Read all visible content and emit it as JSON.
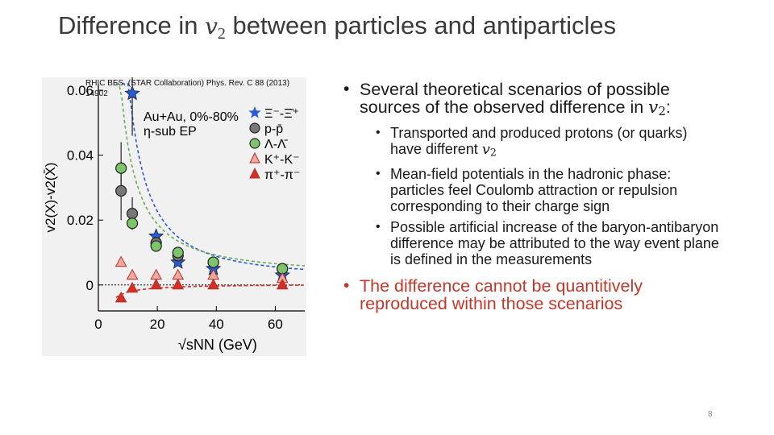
{
  "slide": {
    "title_prefix": "Difference in ",
    "title_var": "v",
    "title_sub": "2",
    "title_suffix": " between particles and antiparticles",
    "citation": "RHIC BES. (STAR Collaboration) Phys. Rev. C 88 (2013) 14902",
    "page_number": "8"
  },
  "bullets": {
    "main1_text": "Several theoretical scenarios of possible sources of the observed difference in ",
    "main1_var": "v",
    "main1_sub": "2",
    "main1_tail": ":",
    "sub1_text": "Transported and produced protons (or quarks) have different ",
    "sub1_var": "v",
    "sub1_sub": "2",
    "sub2_text": "Mean-field potentials in the hadronic phase: particles feel Coulomb attraction or repulsion corresponding to their charge sign",
    "sub3_text": "Possible artificial increase of the baryon-antibaryon difference may be attributed to the way event plane is defined in the measurements",
    "main2_text": "The difference cannot be quantitively reproduced within those scenarios"
  },
  "colors": {
    "accent_red": "#c0392b",
    "title_gray": "#3a3a3a"
  },
  "chart_data": {
    "type": "scatter",
    "annotation_line1": "Au+Au,  0%-80%",
    "annotation_line2": "η-sub EP",
    "xlabel": "√sNN  (GeV)",
    "ylabel": "v2(X)-v2(X̄)",
    "xlim": [
      0,
      70
    ],
    "ylim": [
      -0.008,
      0.062
    ],
    "xticks": [
      "0",
      "20",
      "40",
      "60"
    ],
    "yticks": [
      "0",
      "0.02",
      "0.04",
      "0.06"
    ],
    "legend_position": "top-right",
    "series": [
      {
        "name": "Ξ⁻-Ξ̄⁺",
        "marker": "star",
        "color": "#2a5bd7",
        "x": [
          11.5,
          19.6,
          27,
          39,
          62.4
        ],
        "y": [
          0.059,
          0.015,
          0.007,
          0.005,
          0.003
        ]
      },
      {
        "name": "p-p̄",
        "marker": "circle",
        "color": "#777777",
        "x": [
          7.7,
          11.5,
          19.6,
          27,
          39,
          62.4
        ],
        "y": [
          0.029,
          0.022,
          0.013,
          0.009,
          0.007,
          0.005
        ]
      },
      {
        "name": "Λ-Λ̄",
        "marker": "circle",
        "color": "#7ec46b",
        "x": [
          7.7,
          11.5,
          19.6,
          27,
          39,
          62.4
        ],
        "y": [
          0.036,
          0.019,
          0.012,
          0.01,
          0.007,
          0.005
        ]
      },
      {
        "name": "K⁺-K⁻",
        "marker": "triangle",
        "color": "#f3a89a",
        "x": [
          7.7,
          11.5,
          19.6,
          27,
          39,
          62.4
        ],
        "y": [
          0.007,
          0.003,
          0.003,
          0.003,
          0.003,
          0.002
        ]
      },
      {
        "name": "π⁺-π⁻",
        "marker": "triangle",
        "color": "#d62e1f",
        "x": [
          7.7,
          11.5,
          19.6,
          27,
          39,
          62.4
        ],
        "y": [
          -0.004,
          -0.001,
          0.0,
          0.0,
          0.0,
          0.0
        ]
      }
    ]
  }
}
